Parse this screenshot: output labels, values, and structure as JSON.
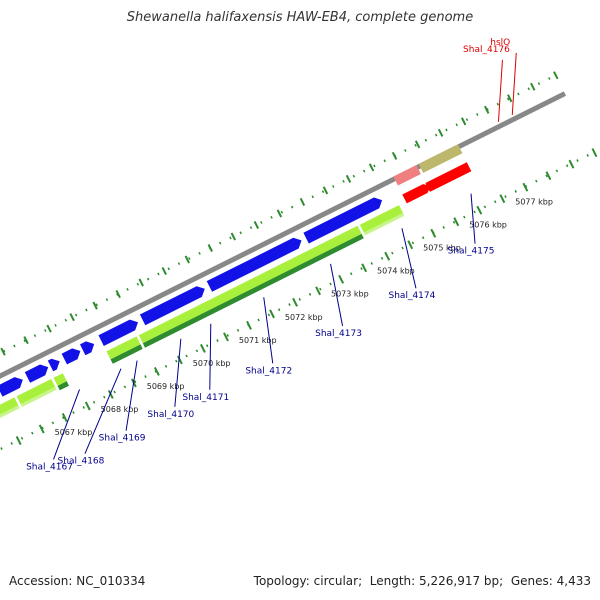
{
  "title": "Shewanella halifaxensis HAW-EB4, complete genome",
  "footer": {
    "accession_label": "Accession:",
    "accession": "NC_010334",
    "topology_label": "Topology:",
    "topology": "circular",
    "length_label": "Length:",
    "length": "5,226,917 bp",
    "genes_label": "Genes:",
    "genes": "4,433"
  },
  "colors": {
    "cds_forward": "#1212e6",
    "cds_light_green": "#a8f03c",
    "cds_dark_green": "#2e8b2e",
    "red_feature": "#ff0000",
    "pink_feature": "#f08080",
    "olive_feature": "#bdb76b",
    "backbone": "#888888",
    "tick": "#2e8b2e",
    "gene_label_blue": "#00008b",
    "gene_label_red": "#dd0000"
  },
  "chart_data": {
    "type": "genome_map",
    "position_scale": [
      {
        "label": "5067 kbp",
        "kbp": 5067
      },
      {
        "label": "5068 kbp",
        "kbp": 5068
      },
      {
        "label": "5069 kbp",
        "kbp": 5069
      },
      {
        "label": "5070 kbp",
        "kbp": 5070
      },
      {
        "label": "5071 kbp",
        "kbp": 5071
      },
      {
        "label": "5072 kbp",
        "kbp": 5072
      },
      {
        "label": "5073 kbp",
        "kbp": 5073
      },
      {
        "label": "5074 kbp",
        "kbp": 5074
      },
      {
        "label": "5075 kbp",
        "kbp": 5075
      },
      {
        "label": "5076 kbp",
        "kbp": 5076
      },
      {
        "label": "5077 kbp",
        "kbp": 5077
      }
    ],
    "gene_labels": [
      {
        "name": "Shal_4167",
        "kbp": 5067.5,
        "color": "blue"
      },
      {
        "name": "Shal_4168",
        "kbp": 5068.4,
        "color": "blue"
      },
      {
        "name": "Shal_4169",
        "kbp": 5068.75,
        "color": "blue"
      },
      {
        "name": "Shal_4170",
        "kbp": 5069.7,
        "color": "blue"
      },
      {
        "name": "Shal_4171",
        "kbp": 5070.35,
        "color": "blue"
      },
      {
        "name": "Shal_4172",
        "kbp": 5071.5,
        "color": "blue"
      },
      {
        "name": "Shal_4173",
        "kbp": 5072.95,
        "color": "blue"
      },
      {
        "name": "Shal_4174",
        "kbp": 5074.5,
        "color": "blue"
      },
      {
        "name": "Shal_4175",
        "kbp": 5076.0,
        "color": "blue"
      },
      {
        "name": "Shal_4176",
        "kbp": 5077.1,
        "color": "red"
      },
      {
        "name": "hslO",
        "kbp": 5077.4,
        "color": "red"
      }
    ],
    "forward_cds": [
      {
        "start": 5065.0,
        "end": 5065.2
      },
      {
        "start": 5065.3,
        "end": 5066.0
      },
      {
        "start": 5066.1,
        "end": 5066.6
      },
      {
        "start": 5066.7,
        "end": 5067.15
      },
      {
        "start": 5067.2,
        "end": 5067.4
      },
      {
        "start": 5067.5,
        "end": 5067.85
      },
      {
        "start": 5067.9,
        "end": 5068.15
      },
      {
        "start": 5068.3,
        "end": 5069.1
      },
      {
        "start": 5069.2,
        "end": 5070.55
      },
      {
        "start": 5070.65,
        "end": 5072.65
      },
      {
        "start": 5072.75,
        "end": 5074.4
      }
    ],
    "green_tracks": [
      {
        "start": 5065.0,
        "end": 5065.45,
        "shade": "light"
      },
      {
        "start": 5065.5,
        "end": 5066.3,
        "shade": "light"
      },
      {
        "start": 5066.35,
        "end": 5067.1,
        "shade": "light"
      },
      {
        "start": 5067.15,
        "end": 5067.35,
        "shade": "mixed"
      },
      {
        "start": 5068.3,
        "end": 5068.95,
        "shade": "mixed"
      },
      {
        "start": 5069.0,
        "end": 5073.75,
        "shade": "mixed"
      },
      {
        "start": 5073.8,
        "end": 5074.65,
        "shade": "light"
      }
    ],
    "right_features": [
      {
        "start": 5074.8,
        "end": 5075.3,
        "color": "pink"
      },
      {
        "start": 5075.35,
        "end": 5076.2,
        "color": "olive"
      },
      {
        "start": 5074.8,
        "end": 5075.25,
        "color": "red"
      },
      {
        "start": 5075.3,
        "end": 5076.2,
        "color": "red"
      }
    ]
  }
}
